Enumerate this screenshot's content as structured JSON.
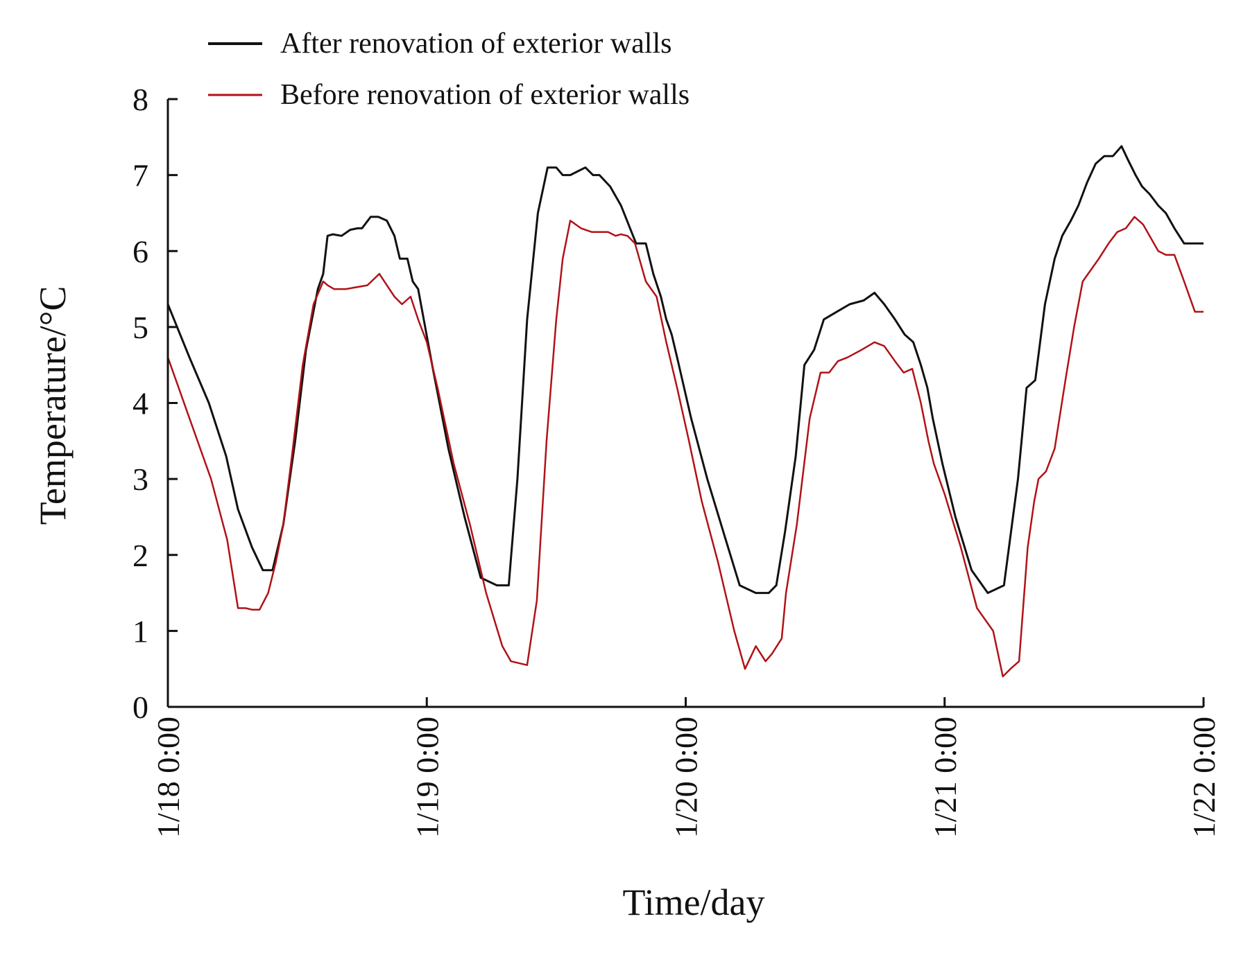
{
  "chart_data": {
    "type": "line",
    "title": "",
    "xlabel": "Time/day",
    "ylabel": "Temperature/°C",
    "ylim": [
      0,
      8
    ],
    "xlim": [
      0,
      96
    ],
    "yticks": [
      "0",
      "1",
      "2",
      "3",
      "4",
      "5",
      "6",
      "7",
      "8"
    ],
    "xticks": [
      {
        "label": "1/18 0:00",
        "x": 0
      },
      {
        "label": "1/19 0:00",
        "x": 24
      },
      {
        "label": "1/20 0:00",
        "x": 48
      },
      {
        "label": "1/21 0:00",
        "x": 72
      },
      {
        "label": "1/22 0:00",
        "x": 96
      }
    ],
    "x_unit": "hours since 1/18 0:00",
    "grid": false,
    "legend_position": "top",
    "series": [
      {
        "name": "After renovation of exterior walls",
        "color": "#111111",
        "x": [
          0,
          2,
          3.8,
          5.4,
          6.5,
          7.8,
          8.8,
          9.7,
          10.7,
          11.8,
          12.8,
          13.9,
          14.4,
          14.8,
          15.3,
          16.1,
          16.9,
          17.6,
          18,
          18.8,
          19.5,
          20.3,
          21,
          21.5,
          22.2,
          22.7,
          23.2,
          24.5,
          26,
          27.5,
          29,
          30.5,
          31.6,
          32.4,
          33.3,
          34.3,
          35.2,
          36,
          36.6,
          37.3,
          38,
          38.7,
          39.4,
          40,
          41,
          42,
          43.4,
          44.3,
          45,
          45.7,
          46.2,
          46.7,
          47.2,
          48.5,
          50,
          51.5,
          53,
          54.5,
          55.7,
          56.4,
          57.2,
          58.2,
          59,
          59.9,
          60.8,
          62,
          63.2,
          64.5,
          65.5,
          66.4,
          67.4,
          68.3,
          69.1,
          69.8,
          70.4,
          70.9,
          71.8,
          73,
          74.5,
          76,
          77.5,
          78.8,
          79.6,
          80.4,
          81.3,
          82.2,
          82.9,
          83.7,
          84.4,
          85.2,
          86,
          86.8,
          87.6,
          88.4,
          89,
          89.7,
          90.3,
          91,
          91.8,
          92.5,
          93.3,
          94.2,
          95.2,
          96
        ],
        "values": [
          5.3,
          4.6,
          4.0,
          3.3,
          2.6,
          2.1,
          1.8,
          1.8,
          2.4,
          3.5,
          4.7,
          5.5,
          5.7,
          6.2,
          6.22,
          6.2,
          6.28,
          6.3,
          6.3,
          6.45,
          6.45,
          6.4,
          6.2,
          5.9,
          5.9,
          5.6,
          5.5,
          4.5,
          3.4,
          2.5,
          1.7,
          1.6,
          1.6,
          3.0,
          5.1,
          6.5,
          7.1,
          7.1,
          7.0,
          7.0,
          7.05,
          7.1,
          7.0,
          7.0,
          6.85,
          6.6,
          6.1,
          6.1,
          5.7,
          5.4,
          5.1,
          4.9,
          4.6,
          3.8,
          3.0,
          2.3,
          1.6,
          1.5,
          1.5,
          1.6,
          2.3,
          3.3,
          4.5,
          4.7,
          5.1,
          5.2,
          5.3,
          5.35,
          5.45,
          5.3,
          5.1,
          4.9,
          4.8,
          4.5,
          4.2,
          3.8,
          3.2,
          2.5,
          1.8,
          1.5,
          1.6,
          3.0,
          4.2,
          4.3,
          5.3,
          5.9,
          6.2,
          6.4,
          6.6,
          6.9,
          7.15,
          7.25,
          7.25,
          7.38,
          7.2,
          7.0,
          6.85,
          6.75,
          6.6,
          6.5,
          6.3,
          6.1,
          6.1,
          6.1
        ],
        "note": "black line"
      },
      {
        "name": "Before renovation of exterior walls",
        "color": "#b01217",
        "x": [
          0,
          2,
          4,
          5.5,
          6.5,
          7.2,
          7.8,
          8.5,
          9.3,
          10,
          10.7,
          11.5,
          12.5,
          13.5,
          14.4,
          14.8,
          15.4,
          16.5,
          18.5,
          19.6,
          20.3,
          21,
          21.7,
          22.5,
          23.2,
          24,
          25,
          26.5,
          28,
          29.5,
          31,
          31.8,
          33.3,
          34.2,
          35.1,
          36,
          36.6,
          37.3,
          38.3,
          39.3,
          40,
          40.8,
          41.5,
          42,
          42.6,
          43.3,
          44.3,
          45.3,
          46.2,
          47.2,
          48.3,
          49.5,
          51,
          52.5,
          53.5,
          54.5,
          55.4,
          56,
          56.9,
          57.3,
          58.3,
          59.5,
          60.5,
          61.3,
          62.1,
          63,
          64.3,
          65.5,
          66.4,
          67.4,
          68.2,
          69,
          69.8,
          70.5,
          71,
          72,
          73.5,
          75,
          76.5,
          77.4,
          78.1,
          78.9,
          79.7,
          80.3,
          80.7,
          81.4,
          82.2,
          83.2,
          84,
          84.8,
          86.3,
          87.2,
          88,
          88.8,
          89.6,
          90.4,
          91,
          91.8,
          92.5,
          93.3,
          94.2,
          95.2,
          96
        ],
        "values": [
          4.6,
          3.8,
          3.0,
          2.2,
          1.3,
          1.3,
          1.28,
          1.28,
          1.5,
          1.9,
          2.4,
          3.3,
          4.5,
          5.3,
          5.6,
          5.55,
          5.5,
          5.5,
          5.55,
          5.7,
          5.55,
          5.4,
          5.3,
          5.4,
          5.1,
          4.8,
          4.2,
          3.2,
          2.4,
          1.5,
          0.8,
          0.6,
          0.55,
          1.4,
          3.5,
          5.1,
          5.9,
          6.4,
          6.3,
          6.25,
          6.25,
          6.25,
          6.2,
          6.22,
          6.2,
          6.1,
          5.6,
          5.4,
          4.8,
          4.2,
          3.5,
          2.7,
          1.9,
          1.0,
          0.5,
          0.8,
          0.6,
          0.7,
          0.9,
          1.5,
          2.4,
          3.8,
          4.4,
          4.4,
          4.55,
          4.6,
          4.7,
          4.8,
          4.75,
          4.55,
          4.4,
          4.45,
          4.0,
          3.5,
          3.2,
          2.8,
          2.1,
          1.3,
          1.0,
          0.4,
          0.5,
          0.6,
          2.1,
          2.7,
          3.0,
          3.1,
          3.4,
          4.3,
          5.0,
          5.6,
          5.9,
          6.1,
          6.25,
          6.3,
          6.45,
          6.35,
          6.2,
          6.0,
          5.95,
          5.95,
          5.6,
          5.2,
          5.2
        ],
        "note": "red line"
      }
    ]
  }
}
